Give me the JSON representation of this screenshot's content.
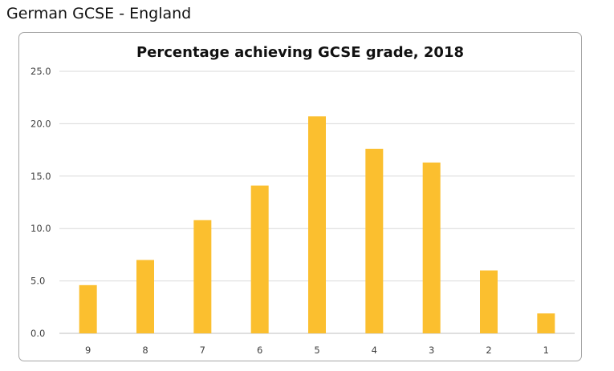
{
  "page": {
    "heading": "German GCSE - England"
  },
  "chart_data": {
    "type": "bar",
    "title": "Percentage achieving GCSE grade, 2018",
    "xlabel": "",
    "ylabel": "",
    "categories": [
      "9",
      "8",
      "7",
      "6",
      "5",
      "4",
      "3",
      "2",
      "1"
    ],
    "values": [
      4.6,
      7.0,
      10.8,
      14.1,
      20.7,
      17.6,
      16.3,
      6.0,
      1.9
    ],
    "ylim": [
      0,
      25
    ],
    "yticks": [
      "0.0",
      "5.0",
      "10.0",
      "15.0",
      "20.0",
      "25.0"
    ],
    "bar_color": "#fbbf2f",
    "grid": true,
    "legend": "none"
  }
}
